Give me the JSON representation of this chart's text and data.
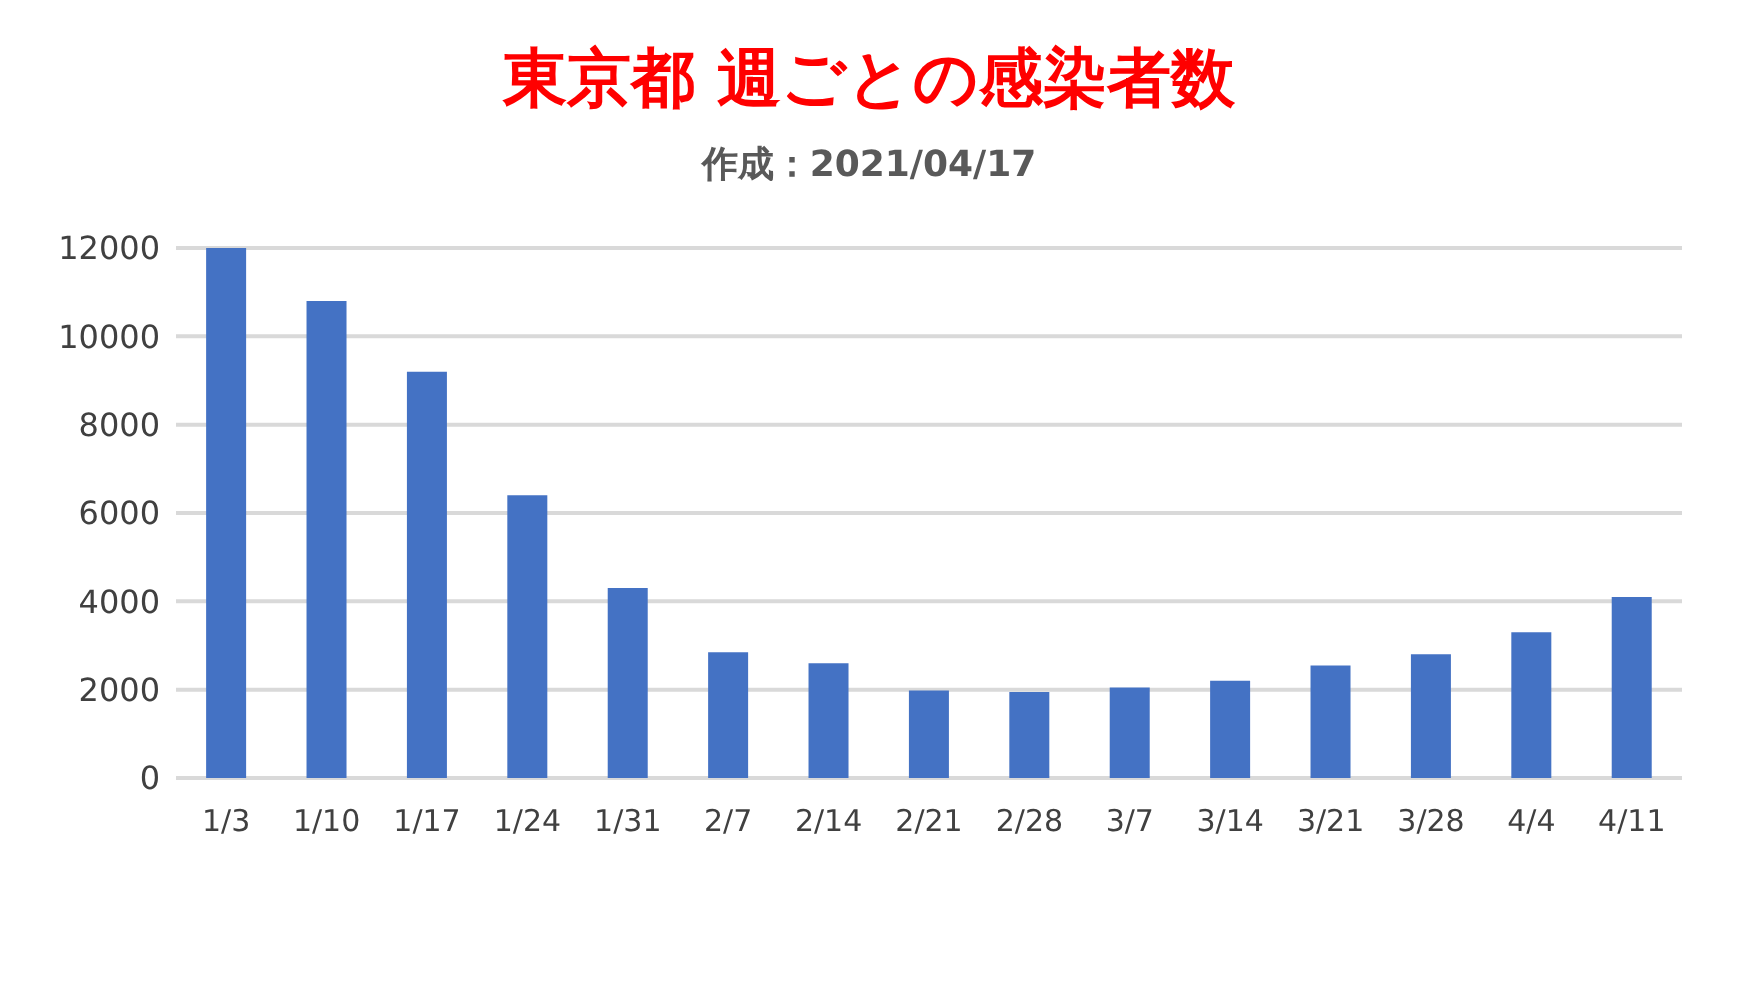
{
  "chart_data": {
    "type": "bar",
    "title": "東京都 週ごとの感染者数",
    "subtitle": "作成：2021/04/17",
    "categories": [
      "1/3",
      "1/10",
      "1/17",
      "1/24",
      "1/31",
      "2/7",
      "2/14",
      "2/21",
      "2/28",
      "3/7",
      "3/14",
      "3/21",
      "3/28",
      "4/4",
      "4/11"
    ],
    "values": [
      12000,
      10800,
      9200,
      6400,
      4300,
      2850,
      2600,
      1980,
      1950,
      2050,
      2200,
      2550,
      2800,
      3300,
      4100
    ],
    "color": "#4472c4",
    "ylim": [
      0,
      12000
    ],
    "yticks": [
      0,
      2000,
      4000,
      6000,
      8000,
      10000,
      12000
    ],
    "grid": "y"
  }
}
